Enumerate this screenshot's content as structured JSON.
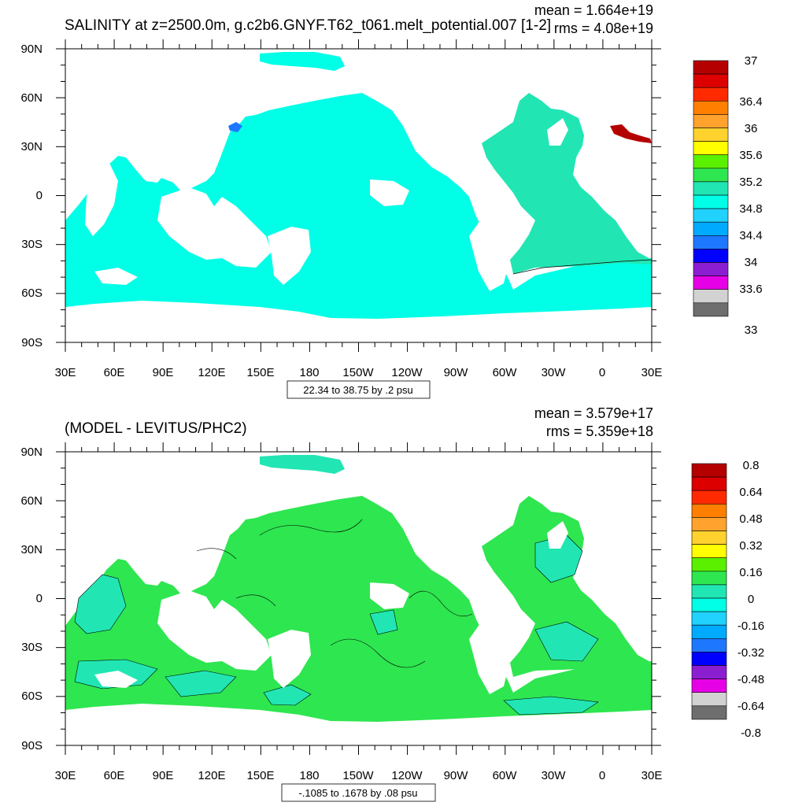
{
  "panels": [
    {
      "id": "top",
      "title": "SALINITY at z=2500.0m, g.c2b6.GNYF.T62_t061.melt_potential.007 [1-2]",
      "mean": "mean = 1.664e+19",
      "rms": "rms = 4.08e+19",
      "contour_info": "22.34 to 38.75 by .2 psu",
      "colorbar_labels": [
        "37",
        "36.4",
        "36",
        "35.6",
        "35.2",
        "34.8",
        "34.4",
        "34",
        "33.6",
        "33"
      ],
      "colorbar_colors": [
        "#b50000",
        "#dc0000",
        "#ff2a00",
        "#ff7f00",
        "#ffa22e",
        "#ffd22e",
        "#ffff00",
        "#5af000",
        "#2ee650",
        "#21e6b4",
        "#00ffe6",
        "#21d2ff",
        "#00aaff",
        "#1e78ff",
        "#0000ff",
        "#8c1ed2",
        "#e600e6",
        "#d2d2d2",
        "#6e6e6e"
      ],
      "ocean_color": "#00ffe6",
      "atlantic_color": "#21e6b4"
    },
    {
      "id": "bottom",
      "title": "(MODEL - LEVITUS/PHC2)",
      "mean": "mean = 3.579e+17",
      "rms": "rms = 5.359e+18",
      "contour_info": "-.1085 to .1678 by .08 psu",
      "colorbar_labels": [
        "0.8",
        "0.64",
        "0.48",
        "0.32",
        "0.16",
        "0",
        "-0.16",
        "-0.32",
        "-0.48",
        "-0.64",
        "-0.8"
      ],
      "colorbar_colors": [
        "#b50000",
        "#dc0000",
        "#ff2a00",
        "#ff7f00",
        "#ffa22e",
        "#ffd22e",
        "#ffff00",
        "#5af000",
        "#2ee650",
        "#21e6b4",
        "#00ffe6",
        "#21d2ff",
        "#00aaff",
        "#1e78ff",
        "#0000ff",
        "#8c1ed2",
        "#e600e6",
        "#d2d2d2",
        "#6e6e6e"
      ],
      "ocean_color": "#2ee650",
      "anomaly_color": "#21e6b4"
    }
  ],
  "axes": {
    "lat_labels": [
      "90N",
      "60N",
      "30N",
      "0",
      "30S",
      "60S",
      "90S"
    ],
    "lon_labels": [
      "30E",
      "60E",
      "90E",
      "120E",
      "150E",
      "180",
      "150W",
      "120W",
      "90W",
      "60W",
      "30W",
      "0",
      "30E"
    ]
  }
}
